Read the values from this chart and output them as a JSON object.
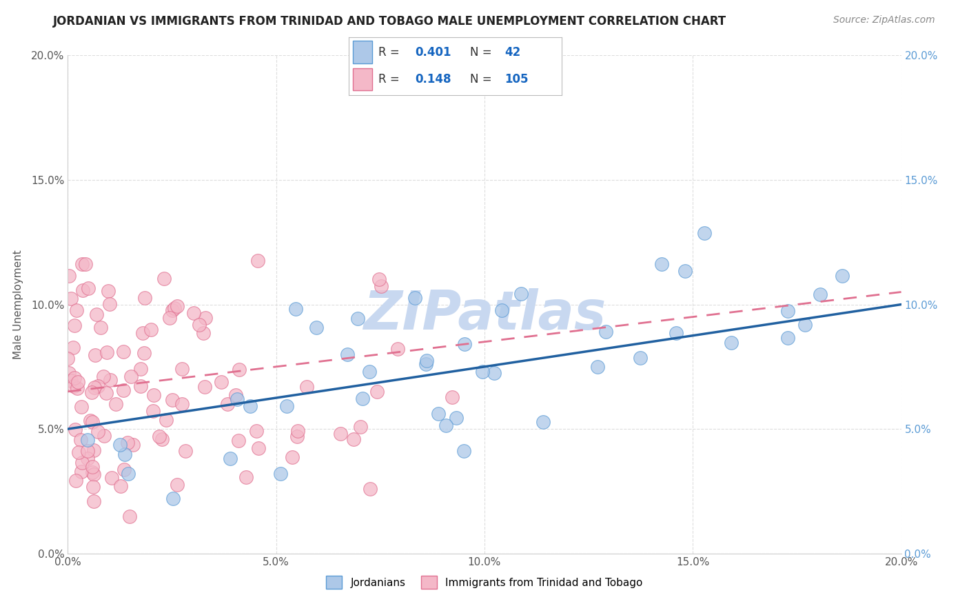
{
  "title": "JORDANIAN VS IMMIGRANTS FROM TRINIDAD AND TOBAGO MALE UNEMPLOYMENT CORRELATION CHART",
  "source": "Source: ZipAtlas.com",
  "ylabel": "Male Unemployment",
  "xlim": [
    0.0,
    0.2
  ],
  "ylim": [
    0.0,
    0.2
  ],
  "tick_vals": [
    0.0,
    0.05,
    0.1,
    0.15,
    0.2
  ],
  "tick_labels": [
    "0.0%",
    "5.0%",
    "10.0%",
    "15.0%",
    "20.0%"
  ],
  "right_tick_labels": [
    "0.0%",
    "5.0%",
    "10.0%",
    "15.0%",
    "20.0%"
  ],
  "group1_name": "Jordanians",
  "group1_color": "#adc8e8",
  "group1_edge_color": "#5b9bd5",
  "group1_R": 0.401,
  "group1_N": 42,
  "group1_line_color": "#2060a0",
  "group2_name": "Immigrants from Trinidad and Tobago",
  "group2_color": "#f4b8c8",
  "group2_edge_color": "#e07090",
  "group2_R": 0.148,
  "group2_N": 105,
  "group2_line_color": "#e07090",
  "watermark": "ZIPatlas",
  "watermark_color": "#c8d8f0",
  "legend_color": "#1565c0",
  "right_axis_color": "#5b9bd5",
  "title_color": "#222222",
  "source_color": "#888888",
  "grid_color": "#dddddd",
  "axis_label_color": "#555555"
}
